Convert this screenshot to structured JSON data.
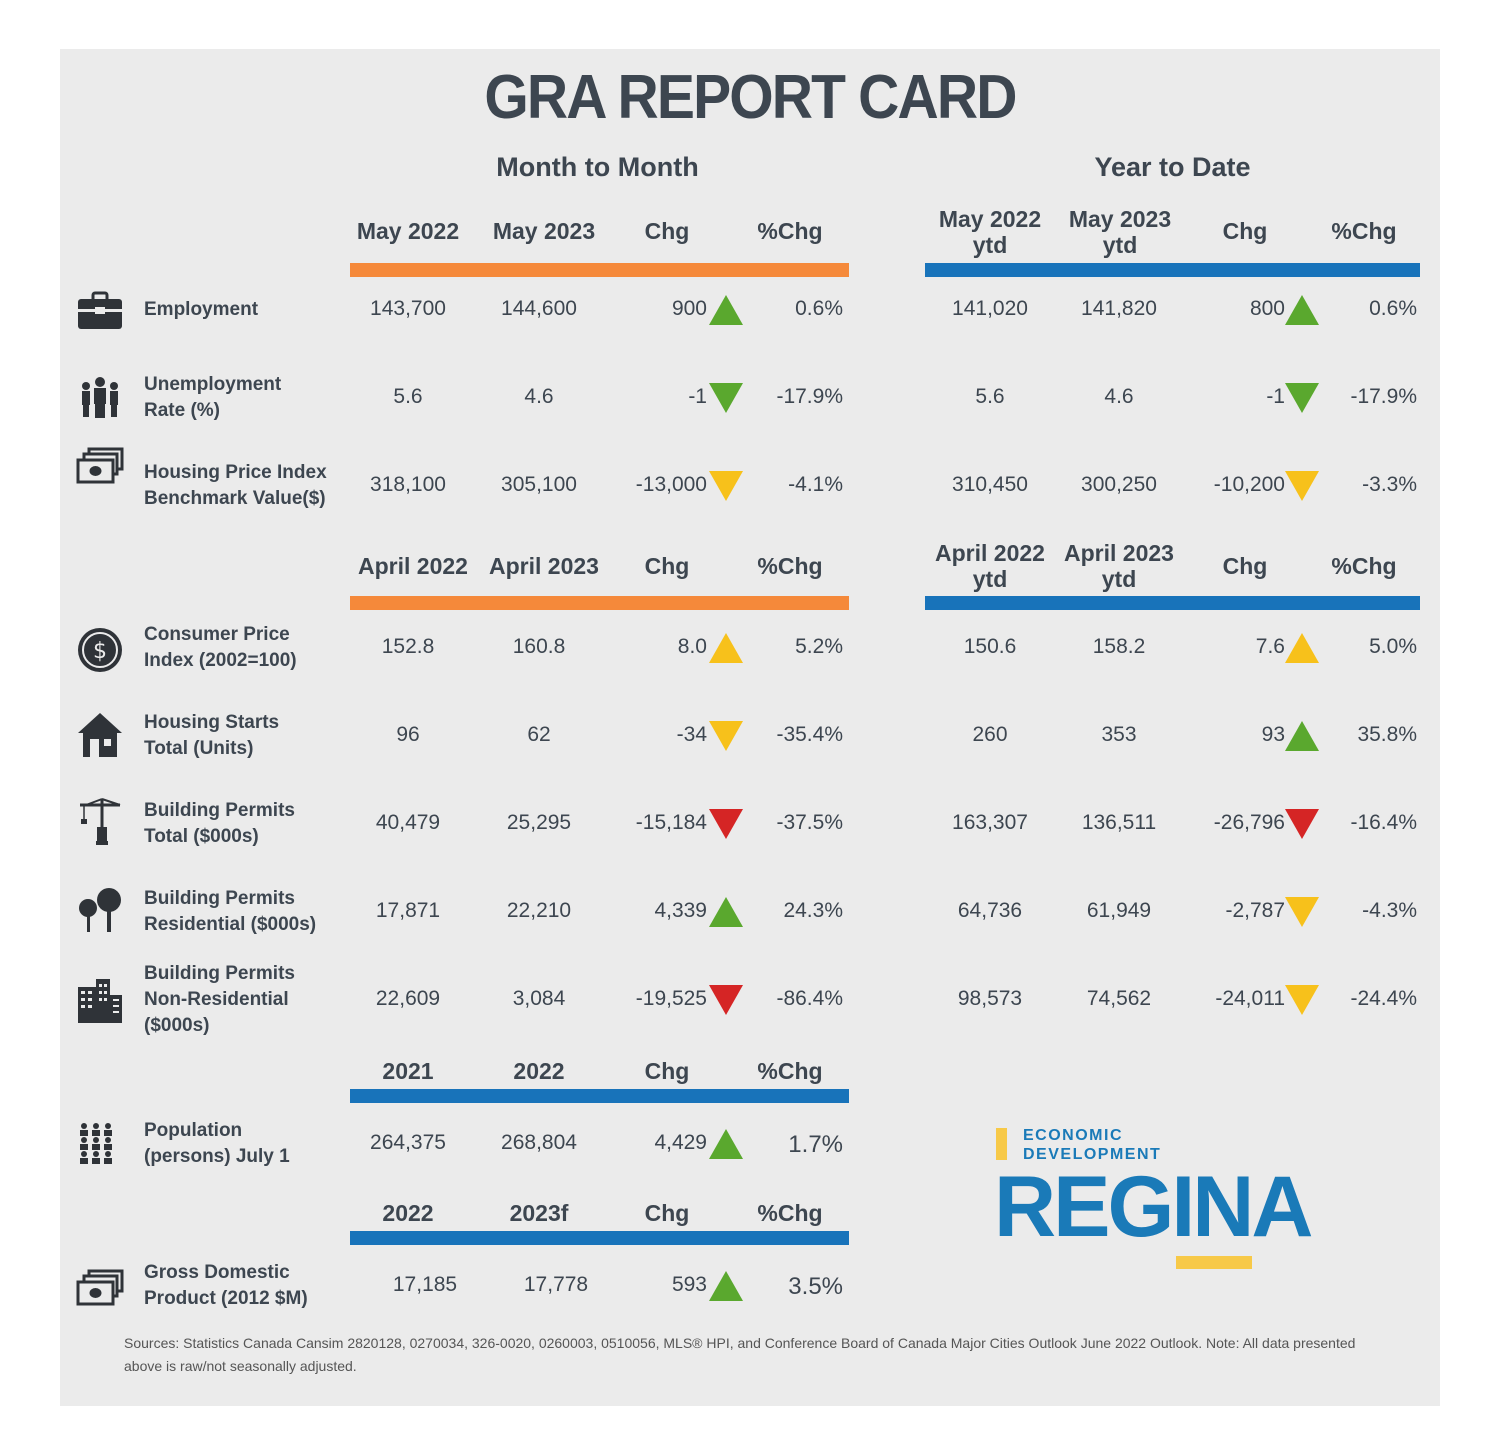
{
  "title": "GRA REPORT CARD",
  "sections": {
    "month": "Month to Month",
    "ytd": "Year to Date"
  },
  "header1": {
    "m": [
      "May 2022",
      "May 2023",
      "Chg",
      "%Chg"
    ],
    "y": [
      [
        "May 2022",
        "ytd"
      ],
      [
        "May 2023",
        "ytd"
      ],
      "Chg",
      "%Chg"
    ]
  },
  "header2": {
    "m": [
      "April 2022",
      "April 2023",
      "Chg",
      "%Chg"
    ],
    "y": [
      [
        "April 2022",
        "ytd"
      ],
      [
        "April 2023",
        "ytd"
      ],
      "Chg",
      "%Chg"
    ]
  },
  "header3": [
    "2021",
    "2022",
    "Chg",
    "%Chg"
  ],
  "header4": [
    "2022",
    "2023f",
    "Chg",
    "%Chg"
  ],
  "rows": [
    {
      "label": [
        "Employment"
      ],
      "icon": "briefcase-icon",
      "m": [
        "143,700",
        "144,600",
        "900",
        "0.6%"
      ],
      "m_tri": "up-green",
      "y": [
        "141,020",
        "141,820",
        "800",
        "0.6%"
      ],
      "y_tri": "up-green"
    },
    {
      "label": [
        "Unemployment",
        "Rate (%)"
      ],
      "icon": "people-icon",
      "m": [
        "5.6",
        "4.6",
        "-1",
        "-17.9%"
      ],
      "m_tri": "down-green",
      "y": [
        "5.6",
        "4.6",
        "-1",
        "-17.9%"
      ],
      "y_tri": "down-green"
    },
    {
      "label": [
        "Housing Price Index",
        "Benchmark Value($)"
      ],
      "icon": "money-stack-icon",
      "m": [
        "318,100",
        "305,100",
        "-13,000",
        "-4.1%"
      ],
      "m_tri": "down-yellow",
      "y": [
        "310,450",
        "300,250",
        "-10,200",
        "-3.3%"
      ],
      "y_tri": "down-yellow"
    },
    {
      "label": [
        "Consumer Price",
        "Index (2002=100)"
      ],
      "icon": "dollar-coin-icon",
      "m": [
        "152.8",
        "160.8",
        "8.0",
        "5.2%"
      ],
      "m_tri": "up-yellow",
      "y": [
        "150.6",
        "158.2",
        "7.6",
        "5.0%"
      ],
      "y_tri": "up-yellow"
    },
    {
      "label": [
        "Housing Starts",
        "Total (Units)"
      ],
      "icon": "house-icon",
      "m": [
        "96",
        "62",
        "-34",
        "-35.4%"
      ],
      "m_tri": "down-yellow",
      "y": [
        "260",
        "353",
        "93",
        "35.8%"
      ],
      "y_tri": "up-green"
    },
    {
      "label": [
        "Building Permits",
        "Total ($000s)"
      ],
      "icon": "crane-icon",
      "m": [
        "40,479",
        "25,295",
        "-15,184",
        "-37.5%"
      ],
      "m_tri": "down-red",
      "y": [
        "163,307",
        "136,511",
        "-26,796",
        "-16.4%"
      ],
      "y_tri": "down-red"
    },
    {
      "label": [
        "Building Permits",
        "Residential ($000s)"
      ],
      "icon": "trees-icon",
      "m": [
        "17,871",
        "22,210",
        "4,339",
        "24.3%"
      ],
      "m_tri": "up-green",
      "y": [
        "64,736",
        "61,949",
        "-2,787",
        "-4.3%"
      ],
      "y_tri": "down-yellow"
    },
    {
      "label": [
        "Building Permits",
        "Non-Residential",
        "($000s)"
      ],
      "icon": "office-building-icon",
      "m": [
        "22,609",
        "3,084",
        "-19,525",
        "-86.4%"
      ],
      "m_tri": "down-red",
      "y": [
        "98,573",
        "74,562",
        "-24,011",
        "-24.4%"
      ],
      "y_tri": "down-yellow"
    },
    {
      "label": [
        "Population",
        "(persons) July 1"
      ],
      "icon": "population-icon",
      "m": [
        "264,375",
        "268,804",
        "4,429",
        "1.7%"
      ],
      "m_tri": "up-green"
    },
    {
      "label": [
        "Gross Domestic",
        "Product (2012 $M)"
      ],
      "icon": "money-stack-icon",
      "m": [
        "17,185",
        "17,778",
        "593",
        "3.5%"
      ],
      "m_tri": "up-green"
    }
  ],
  "logo": {
    "line1": "ECONOMIC",
    "line2": "DEVELOPMENT",
    "name": "REGINA"
  },
  "sources": "Sources: Statistics Canada Cansim 2820128, 0270034, 326-0020, 0260003, 0510056, MLS® HPI, and Conference Board of Canada Major Cities Outlook June 2022 Outlook. Note: All data presented above is raw/not seasonally adjusted.",
  "colors": {
    "orange_bar": "#f5893a",
    "blue_bar": "#1873ba",
    "up": "#5aa82e",
    "neutral": "#f7c11b",
    "down": "#d52525",
    "brand": "#1a7ab8"
  }
}
